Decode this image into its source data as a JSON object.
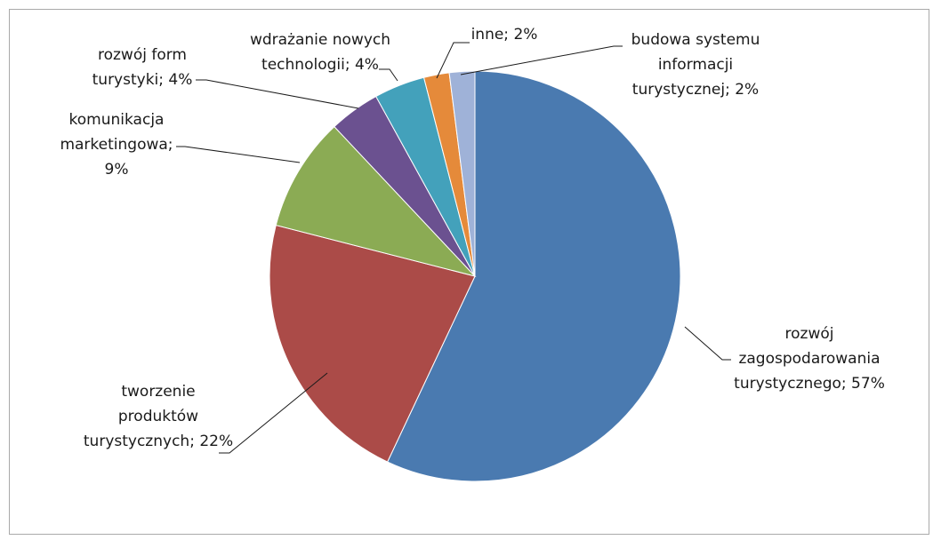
{
  "chart_data": {
    "type": "pie",
    "title": "",
    "slices": [
      {
        "label": [
          "rozwój",
          "zagospodarowania",
          "turystycznego; 57%"
        ],
        "value": 57,
        "color": "#4a7ab0"
      },
      {
        "label": [
          "tworzenie",
          "produktów",
          "turystycznych; 22%"
        ],
        "value": 22,
        "color": "#ab4b48"
      },
      {
        "label": [
          "komunikacja",
          "marketingowa;",
          "9%"
        ],
        "value": 9,
        "color": "#8bab54"
      },
      {
        "label": [
          "rozwój form",
          "turystyki; 4%"
        ],
        "value": 4,
        "color": "#6b5190"
      },
      {
        "label": [
          "wdrażanie nowych",
          "technologii; 4%"
        ],
        "value": 4,
        "color": "#43a1bb"
      },
      {
        "label": [
          "inne; 2%"
        ],
        "value": 2,
        "color": "#e58a3a"
      },
      {
        "label": [
          "budowa systemu",
          "informacji",
          "turystycznej; 2%"
        ],
        "value": 2,
        "color": "#9fb2d8"
      }
    ]
  }
}
